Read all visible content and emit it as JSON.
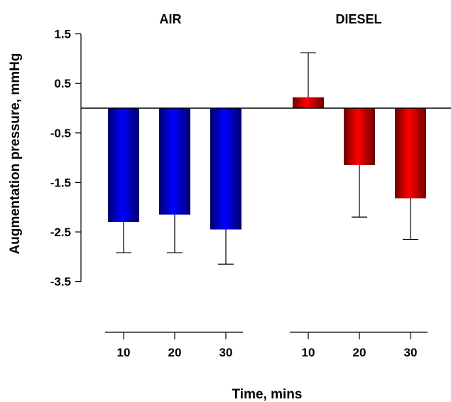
{
  "chart_data": {
    "type": "bar",
    "title": "",
    "xlabel": "Time, mins",
    "ylabel": "Augmentation pressure, mmHg",
    "ylim": [
      -3.5,
      1.5
    ],
    "yticks": [
      "1.5",
      "0.5",
      "-0.5",
      "-1.5",
      "-2.5",
      "-3.5"
    ],
    "categories": [
      "10",
      "20",
      "30"
    ],
    "groups": [
      {
        "name": "AIR",
        "color": "#0000ff",
        "values": [
          -2.3,
          -2.15,
          -2.45
        ],
        "error_low": [
          -2.92,
          -2.92,
          -3.15
        ],
        "error_high": [
          -2.3,
          -2.15,
          -2.45
        ]
      },
      {
        "name": "DIESEL",
        "color": "#ff0000",
        "values": [
          0.22,
          -1.15,
          -1.82
        ],
        "error_low": [
          0.22,
          -2.2,
          -2.65
        ],
        "error_high": [
          1.12,
          -1.15,
          -1.82
        ]
      }
    ],
    "grid": false,
    "legend": "none"
  }
}
